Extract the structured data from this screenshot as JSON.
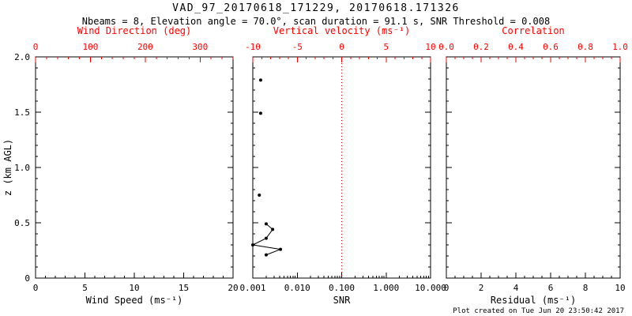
{
  "title": "VAD_97_20170618_171229, 20170618.171326",
  "subtitle": "Nbeams = 8, Elevation angle = 70.0°, scan duration = 91.1 s, SNR Threshold = 0.008",
  "footer": "Plot created on Tue Jun 20 23:50:42 2017",
  "colors": {
    "axis_black": "#000000",
    "axis_red": "#ff0000",
    "background": "#ffffff"
  },
  "chart_data": [
    {
      "type": "scatter",
      "name": "wind-speed-panel",
      "xlabel": "Wind Speed (ms⁻¹)",
      "xlim": [
        0,
        20
      ],
      "xticks": [
        0,
        5,
        10,
        15,
        20
      ],
      "xtick_labels": [
        "0",
        "5",
        "10",
        "15",
        "20"
      ],
      "xminor": 1,
      "top_label": "Wind Direction (deg)",
      "top_lim": [
        0,
        360
      ],
      "top_ticks": [
        0,
        100,
        200,
        300
      ],
      "top_tick_labels": [
        "0",
        "100",
        "200",
        "300"
      ],
      "top_minor": 20,
      "ylabel": "z (km AGL)",
      "ylim": [
        0,
        2
      ],
      "yticks": [
        0,
        0.5,
        1,
        1.5,
        2
      ],
      "ytick_labels": [
        "0",
        "0.5",
        "1.0",
        "1.5",
        "2.0"
      ],
      "yminor": 0.1,
      "show_ylabels": true,
      "series": []
    },
    {
      "type": "scatter",
      "name": "snr-panel",
      "xlabel": "SNR",
      "xscale": "log",
      "xlim": [
        0.001,
        10
      ],
      "xticks": [
        0.001,
        0.01,
        0.1,
        1,
        10
      ],
      "xtick_labels": [
        "0.001",
        "0.010",
        "0.100",
        "1.000",
        "10.000"
      ],
      "top_label": "Vertical velocity (ms⁻¹)",
      "top_lim": [
        -10,
        10
      ],
      "top_ticks": [
        -10,
        -5,
        0,
        5,
        10
      ],
      "top_tick_labels": [
        "-10",
        "-5",
        "0",
        "5",
        "10"
      ],
      "top_minor": 1,
      "ylim": [
        0,
        2
      ],
      "yticks": [
        0,
        0.5,
        1,
        1.5,
        2
      ],
      "ytick_labels": [
        "0",
        "0.5",
        "1.0",
        "1.5",
        "2.0"
      ],
      "yminor": 0.1,
      "show_ylabels": false,
      "refline_top_value": 0,
      "series": [
        {
          "name": "snr-isolated-points",
          "style": "points",
          "points": [
            [
              0.0015,
              1.79
            ],
            [
              0.0015,
              1.49
            ],
            [
              0.0014,
              0.75
            ]
          ]
        },
        {
          "name": "snr-profile-line",
          "style": "line-points",
          "points": [
            [
              0.002,
              0.49
            ],
            [
              0.0028,
              0.44
            ],
            [
              0.002,
              0.36
            ],
            [
              0.001,
              0.3
            ],
            [
              0.0042,
              0.26
            ],
            [
              0.002,
              0.21
            ]
          ]
        }
      ]
    },
    {
      "type": "scatter",
      "name": "residual-panel",
      "xlabel": "Residual (ms⁻¹)",
      "xlim": [
        0,
        10
      ],
      "xticks": [
        0,
        2,
        4,
        6,
        8,
        10
      ],
      "xtick_labels": [
        "0",
        "2",
        "4",
        "6",
        "8",
        "10"
      ],
      "xminor": 0.5,
      "top_label": "Correlation",
      "top_lim": [
        0,
        1
      ],
      "top_ticks": [
        0,
        0.2,
        0.4,
        0.6,
        0.8,
        1
      ],
      "top_tick_labels": [
        "0.0",
        "0.2",
        "0.4",
        "0.6",
        "0.8",
        "1.0"
      ],
      "top_minor": 0.05,
      "ylim": [
        0,
        2
      ],
      "yticks": [
        0,
        0.5,
        1,
        1.5,
        2
      ],
      "ytick_labels": [
        "0",
        "0.5",
        "1.0",
        "1.5",
        "2.0"
      ],
      "yminor": 0.1,
      "show_ylabels": false,
      "series": []
    }
  ]
}
